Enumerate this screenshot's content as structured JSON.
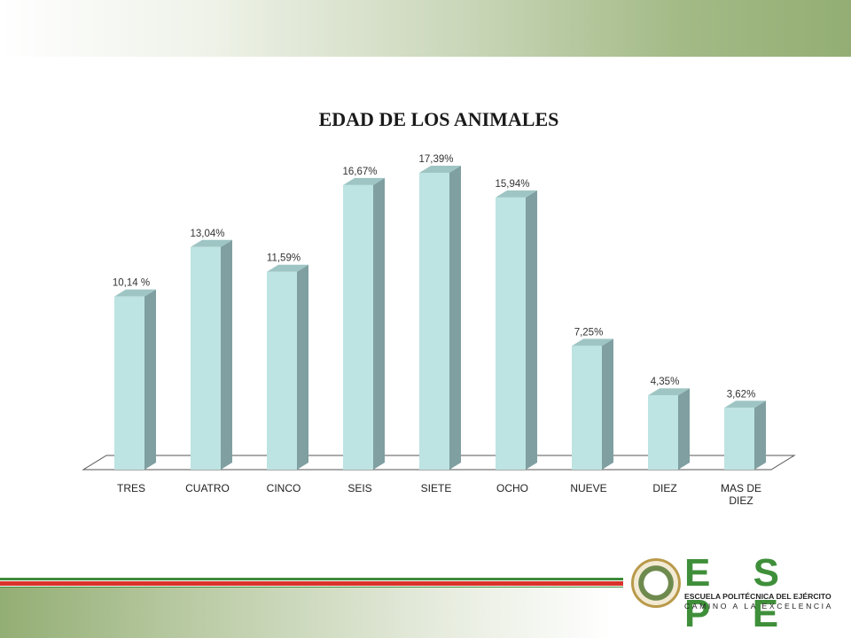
{
  "chart_data": {
    "type": "bar",
    "title": "EDAD DE LOS ANIMALES",
    "categories": [
      "TRES",
      "CUATRO",
      "CINCO",
      "SEIS",
      "SIETE",
      "OCHO",
      "NUEVE",
      "DIEZ",
      "MAS DE DIEZ"
    ],
    "values": [
      10.14,
      13.04,
      11.59,
      16.67,
      17.39,
      15.94,
      7.25,
      4.35,
      3.62
    ],
    "data_labels": [
      "10,14 %",
      "13,04%",
      "11,59%",
      "16,67%",
      "17,39%",
      "15,94%",
      "7,25%",
      "4,35%",
      "3,62%"
    ],
    "xlabel": "",
    "ylabel": "",
    "ylim": [
      0,
      17.39
    ],
    "grid": false,
    "style": "3d-column",
    "colors": {
      "bar_front": "#bde3e2",
      "bar_side": "#7f9fa1",
      "bar_top": "#9ec5c4",
      "floor": "#555555"
    }
  },
  "footer": {
    "logo_text": "E S P E",
    "logo_subtitle": "ESCUELA POLITÉCNICA DEL EJÉRCITO",
    "logo_motto": "CAMINO A LA EXCELENCIA"
  }
}
